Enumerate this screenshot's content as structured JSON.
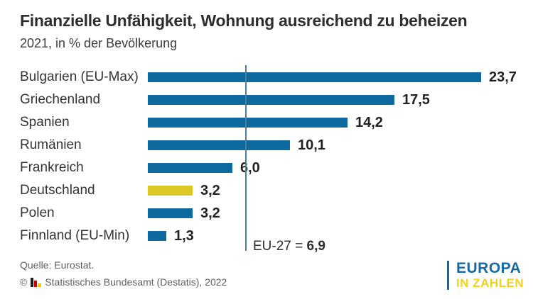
{
  "header": {
    "title": "Finanzielle Unfähigkeit, Wohnung ausreichend zu beheizen",
    "subtitle": "2021, in % der Bevölkerung"
  },
  "chart_data": {
    "type": "bar",
    "orientation": "horizontal",
    "title": "Finanzielle Unfähigkeit, Wohnung ausreichend zu beheizen",
    "subtitle": "2021, in % der Bevölkerung",
    "unit": "% der Bevölkerung",
    "categories": [
      "Bulgarien (EU-Max)",
      "Griechenland",
      "Spanien",
      "Rumänien",
      "Frankreich",
      "Deutschland",
      "Polen",
      "Finnland (EU-Min)"
    ],
    "values": [
      23.7,
      17.5,
      14.2,
      10.1,
      6.0,
      3.2,
      3.2,
      1.3
    ],
    "value_labels": [
      "23,7",
      "17,5",
      "14,2",
      "10,1",
      "6,0",
      "3,2",
      "3,2",
      "1,3"
    ],
    "highlight_category": "Deutschland",
    "reference_line": {
      "label_prefix": "EU-27 = ",
      "value": 6.9,
      "value_label": "6,9"
    },
    "xlim": [
      0,
      25
    ],
    "grid": false,
    "legend": false,
    "colors": {
      "bar": "#0e699e",
      "highlight": "#ddc926",
      "reference_line": "#4b7e9e"
    }
  },
  "footer": {
    "source": "Quelle: Eurostat.",
    "copyright_symbol": "©",
    "copyright_text": "Statistisches Bundesamt (Destatis), 2022",
    "brand": {
      "line1": "EUROPA",
      "line2": "IN ZAHLEN",
      "blue": "#1769a3",
      "yellow": "#efd21c"
    }
  }
}
